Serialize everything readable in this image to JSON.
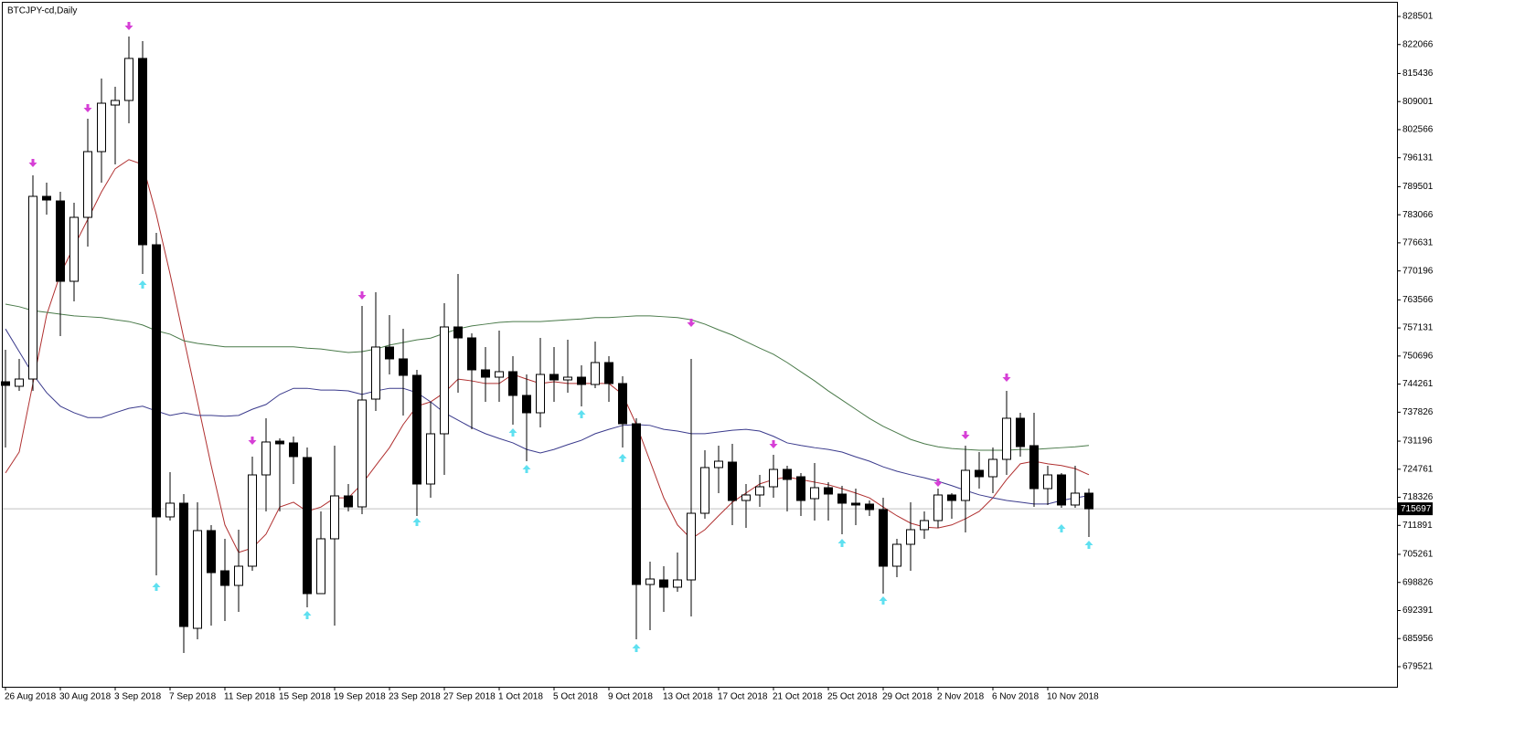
{
  "chart_data": {
    "type": "candlestick",
    "title": "BTCJPY-cd,Daily",
    "categories": [
      "26 Aug 2018",
      null,
      null,
      null,
      "30 Aug 2018",
      null,
      null,
      null,
      "3 Sep 2018",
      null,
      null,
      null,
      "7 Sep 2018",
      null,
      null,
      null,
      "11 Sep 2018",
      null,
      null,
      null,
      "15 Sep 2018",
      null,
      null,
      null,
      "19 Sep 2018",
      null,
      null,
      null,
      "23 Sep 2018",
      null,
      null,
      null,
      "27 Sep 2018",
      null,
      null,
      null,
      "1 Oct 2018",
      null,
      null,
      null,
      "5 Oct 2018",
      null,
      null,
      null,
      "9 Oct 2018",
      null,
      null,
      null,
      "13 Oct 2018",
      null,
      null,
      null,
      "17 Oct 2018",
      null,
      null,
      null,
      "21 Oct 2018",
      null,
      null,
      null,
      "25 Oct 2018",
      null,
      null,
      null,
      "29 Oct 2018",
      null,
      null,
      null,
      "2 Nov 2018",
      null,
      null,
      null,
      "6 Nov 2018",
      null,
      null,
      null,
      "10 Nov 2018",
      null,
      null,
      null
    ],
    "open": [
      744800,
      743760,
      745430,
      787280,
      786230,
      767820,
      782470,
      797530,
      808200,
      809250,
      818880,
      776190,
      713840,
      716980,
      688310,
      710700,
      701490,
      698140,
      702540,
      723460,
      731200,
      730790,
      727440,
      696260,
      708820,
      718650,
      716140,
      740830,
      752760,
      750040,
      746270,
      721370,
      732880,
      757360,
      754850,
      747530,
      745850,
      747110,
      741670,
      737690,
      746480,
      745220,
      745850,
      744180,
      749200,
      744390,
      735180,
      698350,
      699400,
      697730,
      699400,
      714670,
      725140,
      726390,
      717600,
      718860,
      720740,
      724720,
      723040,
      718020,
      720530,
      719070,
      716980,
      716770,
      715510,
      702540,
      707560,
      710910,
      713000,
      718860,
      717600,
      724510,
      723040,
      727020,
      736440,
      730160,
      720320,
      723460,
      716560,
      719280
    ],
    "high": [
      752130,
      750040,
      792090,
      790420,
      788330,
      785820,
      805070,
      814270,
      812390,
      823900,
      822850,
      778910,
      724090,
      719070,
      717190,
      711950,
      708820,
      710910,
      727650,
      736440,
      731830,
      732250,
      729740,
      715090,
      730160,
      721370,
      762170,
      765310,
      760080,
      756940,
      747530,
      740200,
      762800,
      769500,
      755890,
      752760,
      756520,
      750660,
      746480,
      754850,
      752760,
      754430,
      748570,
      754010,
      750660,
      746060,
      736440,
      703580,
      702540,
      705680,
      750040,
      729110,
      730160,
      730580,
      721370,
      723460,
      728070,
      725560,
      723880,
      726180,
      721790,
      720950,
      720320,
      717600,
      718230,
      708820,
      717190,
      715090,
      720320,
      719280,
      730160,
      728690,
      729740,
      742710,
      737690,
      737690,
      725560,
      723880,
      725560,
      720320
    ],
    "low": [
      729740,
      742710,
      742710,
      783100,
      755270,
      763220,
      775770,
      790420,
      794600,
      804020,
      769500,
      700450,
      713000,
      682660,
      685800,
      688940,
      689980,
      692080,
      701490,
      715090,
      715090,
      721370,
      693120,
      696260,
      688940,
      715090,
      714470,
      738110,
      746480,
      737060,
      714050,
      718230,
      723460,
      742290,
      733920,
      740200,
      740200,
      734970,
      726600,
      734340,
      740200,
      742290,
      739160,
      743340,
      740200,
      729740,
      685800,
      687890,
      692080,
      696680,
      691030,
      713420,
      719280,
      711950,
      711330,
      716140,
      718230,
      715090,
      714050,
      713000,
      713000,
      709860,
      711950,
      714050,
      696260,
      700030,
      701490,
      708820,
      711330,
      713420,
      710280,
      720320,
      719280,
      723460,
      727650,
      716140,
      716560,
      715930,
      715930,
      709230
    ],
    "close": [
      743970,
      745430,
      787280,
      786440,
      767820,
      782470,
      797530,
      808620,
      809250,
      818880,
      776190,
      713840,
      716980,
      688730,
      710700,
      701070,
      698140,
      702540,
      723460,
      731000,
      730580,
      727650,
      696260,
      708820,
      718650,
      716140,
      740620,
      752760,
      750040,
      746270,
      721370,
      732880,
      757360,
      754850,
      747530,
      745850,
      747110,
      741670,
      737690,
      746480,
      745220,
      745850,
      744180,
      749200,
      744390,
      735180,
      698350,
      699610,
      697730,
      699400,
      714670,
      725140,
      726600,
      717600,
      718860,
      720740,
      724720,
      722420,
      717600,
      720530,
      719070,
      716980,
      716560,
      715510,
      702540,
      707560,
      710910,
      713000,
      718860,
      717600,
      724510,
      723040,
      727020,
      736440,
      729950,
      720320,
      723460,
      716560,
      719280,
      715697
    ],
    "up_color": "#ffffff",
    "down_color": "#000000",
    "series": [
      {
        "color": "#b03030",
        "values": [
          723900,
          728700,
          744400,
          760100,
          769500,
          775800,
          782000,
          788300,
          793600,
          795700,
          794600,
          783100,
          769500,
          754800,
          740200,
          725600,
          712000,
          705700,
          706700,
          709900,
          716100,
          717200,
          715100,
          716100,
          718200,
          718200,
          721400,
          725600,
          729700,
          735000,
          739200,
          740200,
          742300,
          745400,
          745000,
          744400,
          744400,
          746500,
          745400,
          744400,
          744800,
          744400,
          744400,
          744400,
          744400,
          741900,
          735000,
          726600,
          718200,
          712000,
          708800,
          710900,
          714100,
          717200,
          719300,
          721400,
          722400,
          723000,
          722400,
          721800,
          721200,
          720300,
          719300,
          718200,
          716100,
          714100,
          712400,
          711500,
          711300,
          712000,
          713400,
          715100,
          718200,
          722400,
          726000,
          726600,
          726000,
          725600,
          724900,
          723500
        ]
      },
      {
        "color": "#3a3a8c",
        "values": [
          756900,
          751700,
          746500,
          742300,
          739200,
          737700,
          736600,
          736600,
          737700,
          738700,
          739200,
          738100,
          737100,
          737700,
          737100,
          737100,
          736900,
          737100,
          738500,
          739600,
          741900,
          743300,
          743300,
          742900,
          742900,
          742700,
          741900,
          742700,
          743300,
          743300,
          742300,
          740200,
          737700,
          736000,
          734300,
          732900,
          731800,
          730800,
          729300,
          728500,
          729300,
          730400,
          731400,
          732900,
          733900,
          734800,
          735000,
          734800,
          733900,
          733500,
          732900,
          732900,
          733300,
          733700,
          733900,
          733500,
          732300,
          730800,
          730200,
          729700,
          729300,
          728700,
          727600,
          726600,
          725300,
          724300,
          723500,
          722800,
          722000,
          721000,
          719900,
          718900,
          718200,
          717600,
          717200,
          716800,
          716800,
          717600,
          718200,
          718700
        ]
      },
      {
        "color": "#4a7a4a",
        "values": [
          762600,
          762000,
          761100,
          760700,
          760300,
          759900,
          759700,
          759500,
          759000,
          758600,
          757800,
          756500,
          755700,
          754200,
          753600,
          753200,
          752800,
          752800,
          752800,
          752800,
          752800,
          752800,
          752500,
          752300,
          751900,
          751500,
          751700,
          752300,
          753200,
          753800,
          754400,
          754800,
          755900,
          756900,
          757600,
          758000,
          758400,
          758600,
          758600,
          758600,
          758800,
          759000,
          759200,
          759500,
          759500,
          759700,
          759900,
          759900,
          759700,
          759500,
          759000,
          758000,
          756700,
          755500,
          754000,
          752500,
          751100,
          749200,
          747100,
          745000,
          742700,
          740600,
          738500,
          736400,
          734600,
          733100,
          731600,
          730600,
          729900,
          729500,
          729300,
          729100,
          729100,
          729100,
          729300,
          729300,
          729500,
          729700,
          729900,
          730200
        ]
      },
      {
        "color": "#d63fd6",
        "marker": "down",
        "values": [
          null,
          null,
          794600,
          null,
          null,
          null,
          807160,
          null,
          null,
          825990,
          null,
          null,
          null,
          null,
          null,
          null,
          null,
          null,
          731000,
          null,
          null,
          null,
          null,
          null,
          null,
          null,
          764260,
          null,
          null,
          null,
          null,
          null,
          null,
          null,
          null,
          null,
          null,
          null,
          null,
          null,
          null,
          null,
          null,
          null,
          null,
          null,
          null,
          null,
          null,
          null,
          757990,
          null,
          null,
          null,
          null,
          null,
          730160,
          null,
          null,
          null,
          null,
          null,
          null,
          null,
          null,
          null,
          null,
          null,
          721370,
          null,
          732250,
          null,
          null,
          745430,
          null,
          null,
          null,
          null,
          null,
          null
        ]
      },
      {
        "color": "#5fe0f0",
        "marker": "up",
        "values": [
          null,
          null,
          null,
          null,
          null,
          null,
          null,
          null,
          null,
          null,
          767400,
          698140,
          null,
          null,
          null,
          null,
          null,
          null,
          null,
          null,
          null,
          null,
          691660,
          null,
          null,
          null,
          null,
          null,
          null,
          null,
          713000,
          null,
          null,
          null,
          null,
          null,
          null,
          733500,
          725140,
          null,
          null,
          null,
          737690,
          null,
          null,
          727650,
          684130,
          null,
          null,
          null,
          null,
          null,
          null,
          null,
          null,
          null,
          null,
          null,
          null,
          null,
          null,
          708190,
          null,
          null,
          695010,
          null,
          null,
          null,
          null,
          null,
          null,
          null,
          null,
          null,
          null,
          null,
          null,
          711540,
          null,
          707770
        ]
      }
    ],
    "current_price": 715697,
    "ylim": [
      674918,
      831221
    ],
    "yticks": [
      679521,
      685956,
      692391,
      698826,
      705261,
      711891,
      718326,
      724761,
      731196,
      737826,
      744261,
      750696,
      757131,
      763566,
      770196,
      776631,
      783066,
      789501,
      796131,
      802566,
      809001,
      815436,
      822066,
      828501
    ]
  }
}
